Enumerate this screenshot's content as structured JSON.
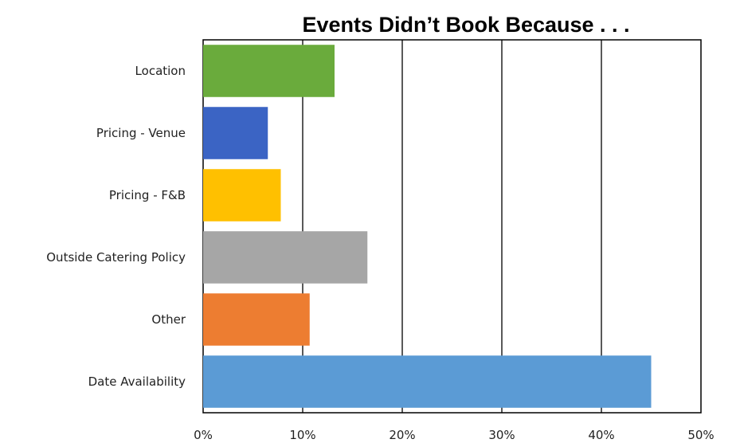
{
  "chart_data": {
    "type": "bar",
    "orientation": "horizontal",
    "title": "Events Didn’t Book Because . . .",
    "categories": [
      "Location",
      "Pricing - Venue",
      "Pricing - F&B",
      "Outside Catering Policy",
      "Other",
      "Date Availability"
    ],
    "values": [
      13.2,
      6.5,
      7.8,
      16.5,
      10.7,
      45.0
    ],
    "colors": [
      "#6aab3c",
      "#3b64c4",
      "#ffc000",
      "#a6a6a6",
      "#ed7d31",
      "#5b9bd5"
    ],
    "xlim": [
      0,
      50
    ],
    "x_ticks": [
      0,
      10,
      20,
      30,
      40,
      50
    ],
    "x_tick_labels": [
      "0%",
      "10%",
      "20%",
      "30%",
      "40%",
      "50%"
    ],
    "xlabel": "",
    "ylabel": "",
    "grid": "vertical",
    "legend": "none"
  }
}
